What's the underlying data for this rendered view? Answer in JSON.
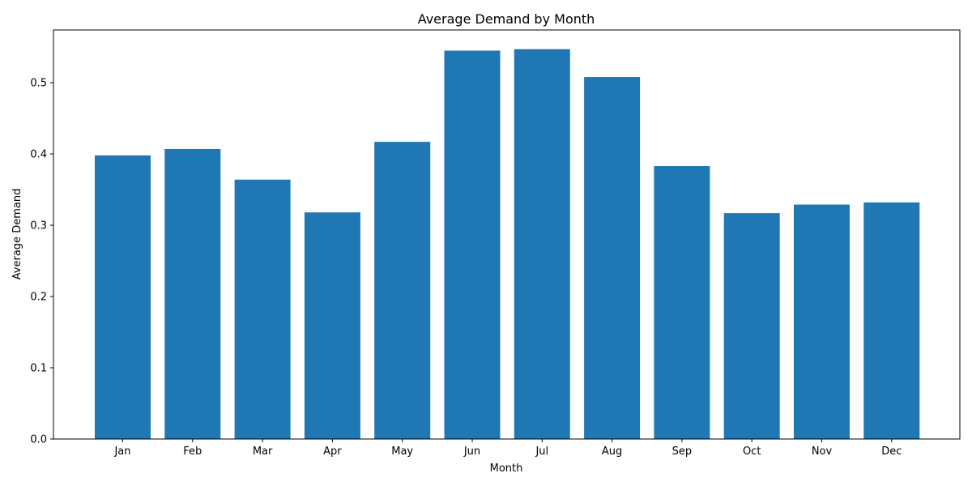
{
  "chart_data": {
    "type": "bar",
    "title": "Average Demand by Month",
    "xlabel": "Month",
    "ylabel": "Average Demand",
    "categories": [
      "Jan",
      "Feb",
      "Mar",
      "Apr",
      "May",
      "Jun",
      "Jul",
      "Aug",
      "Sep",
      "Oct",
      "Nov",
      "Dec"
    ],
    "values": [
      0.398,
      0.407,
      0.364,
      0.318,
      0.417,
      0.545,
      0.547,
      0.508,
      0.383,
      0.317,
      0.329,
      0.332
    ],
    "yticks": [
      "0.0",
      "0.1",
      "0.2",
      "0.3",
      "0.4",
      "0.5"
    ],
    "ylim": [
      0,
      0.574
    ],
    "grid": false,
    "legend": "none",
    "bar_color": "#1f77b4"
  }
}
